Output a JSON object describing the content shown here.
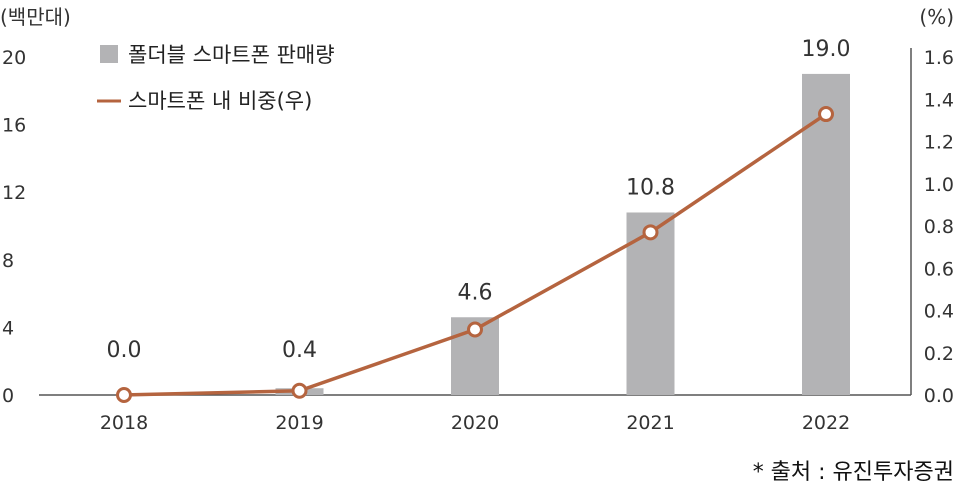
{
  "chart_data": {
    "type": "bar",
    "categories": [
      "2018",
      "2019",
      "2020",
      "2021",
      "2022"
    ],
    "left_axis": {
      "unit": "(백만대)",
      "ylim": [
        0,
        20
      ],
      "ticks": [
        "0",
        "4",
        "8",
        "12",
        "16",
        "20"
      ]
    },
    "right_axis": {
      "unit": "(%)",
      "ylim": [
        0,
        1.6
      ],
      "ticks": [
        "0.0",
        "0.2",
        "0.4",
        "0.6",
        "0.8",
        "1.0",
        "1.2",
        "1.4",
        "1.6"
      ]
    },
    "series": [
      {
        "name": "폴더블 스마트폰 판매량",
        "kind": "bar",
        "axis": "left",
        "values": [
          0.0,
          0.4,
          4.6,
          10.8,
          19.0
        ],
        "labels": [
          "0.0",
          "0.4",
          "4.6",
          "10.8",
          "19.0"
        ],
        "color": "#b3b3b5"
      },
      {
        "name": "스마트폰 내 비중(우)",
        "kind": "line",
        "axis": "right",
        "values": [
          0.0,
          0.02,
          0.31,
          0.77,
          1.33
        ],
        "color": "#b5643f"
      }
    ],
    "legend_position": "top-left",
    "grid": false,
    "source": "* 출처 : 유진투자증권"
  }
}
